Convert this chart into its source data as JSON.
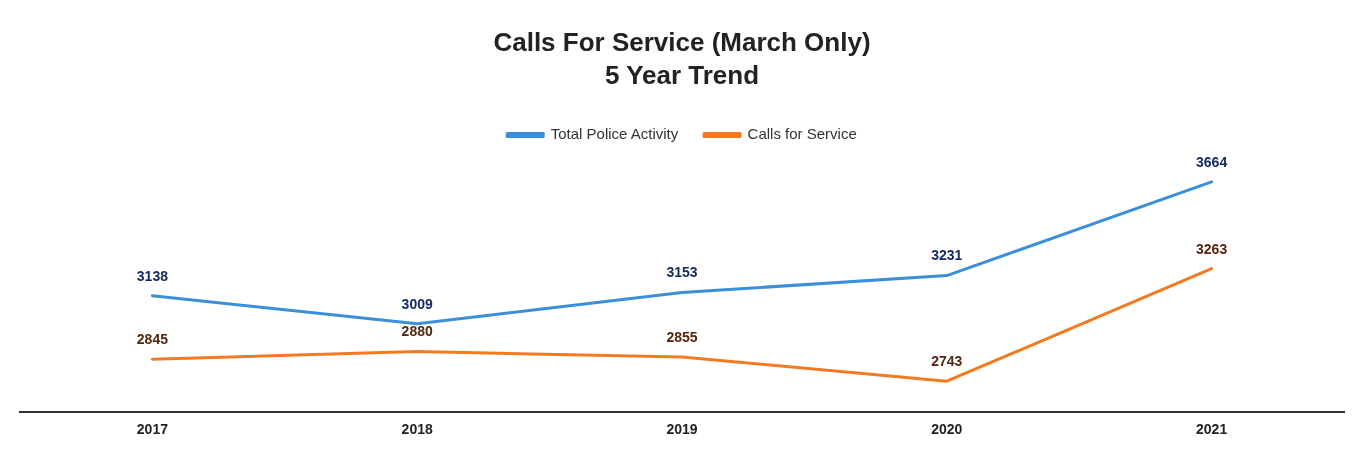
{
  "chart_data": {
    "type": "line",
    "title": "Calls For Service (March Only)",
    "subtitle": "5 Year Trend",
    "categories": [
      "2017",
      "2018",
      "2019",
      "2020",
      "2021"
    ],
    "series": [
      {
        "name": "Total Police Activity",
        "color": "#3a8fd8",
        "values": [
          3138,
          3009,
          3153,
          3231,
          3664
        ]
      },
      {
        "name": "Calls for Service",
        "color": "#f47a20",
        "values": [
          2845,
          2880,
          2855,
          2743,
          3263
        ]
      }
    ],
    "data_labels": true,
    "legend": "top",
    "grid": false,
    "marker": "none",
    "line_style": "solid"
  }
}
